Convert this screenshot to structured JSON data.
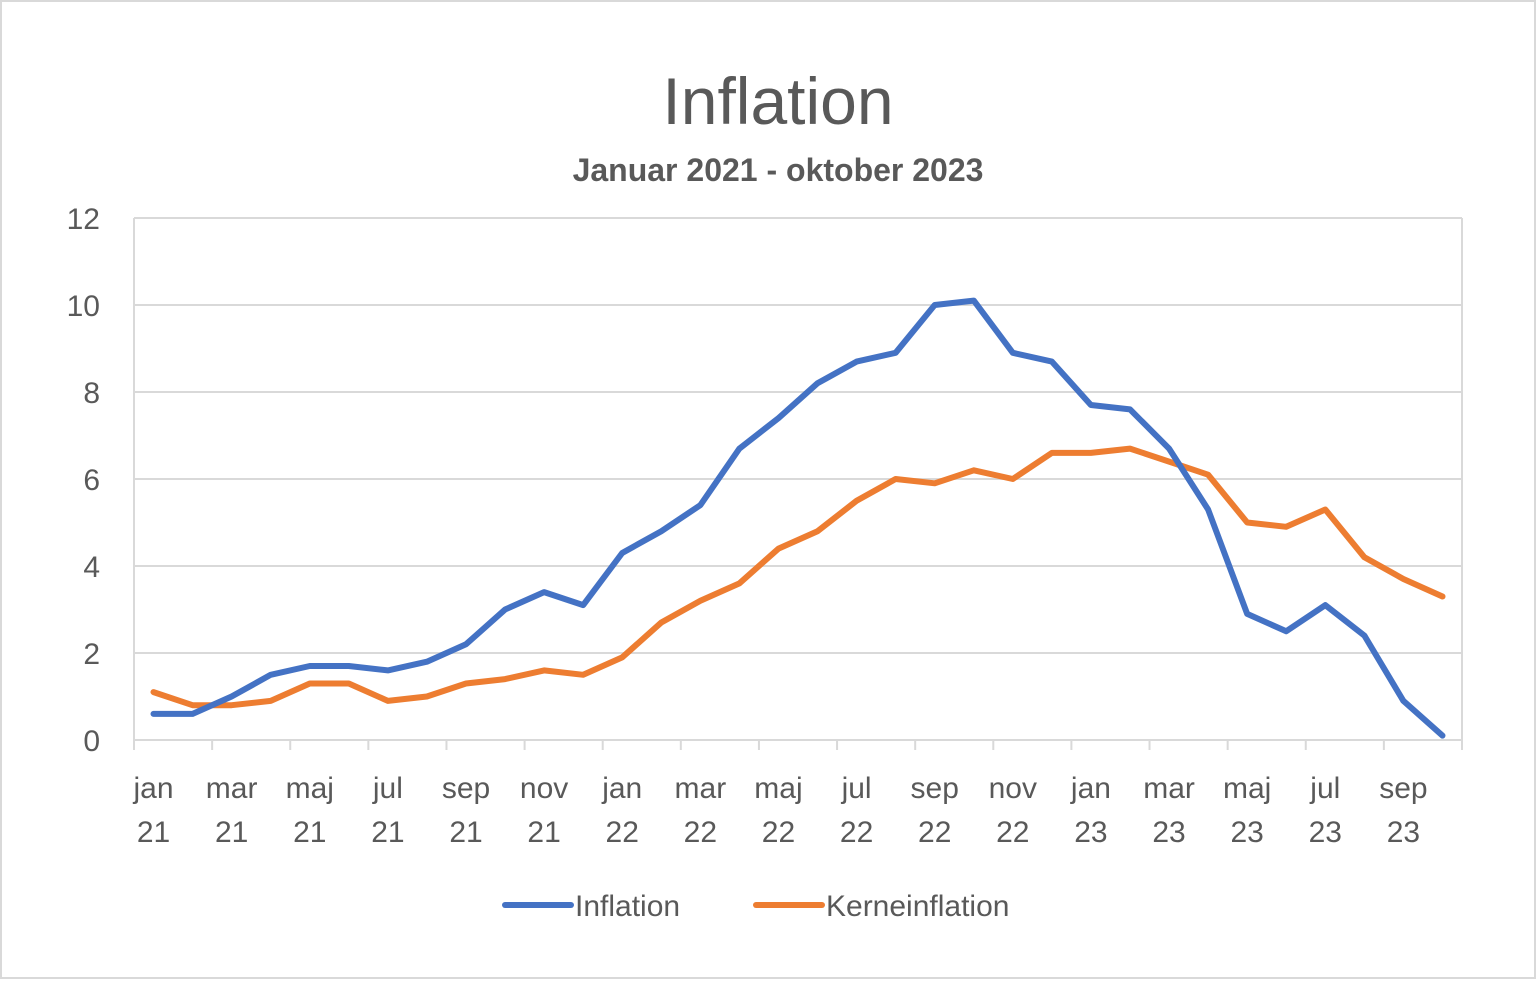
{
  "chart_data": {
    "type": "line",
    "title": "Inflation",
    "subtitle": "Januar 2021 - oktober 2023",
    "xlabel": "",
    "ylabel": "",
    "ylim": [
      0,
      12
    ],
    "yticks": [
      0,
      2,
      4,
      6,
      8,
      10,
      12
    ],
    "grid": true,
    "legend": "bottom",
    "categories": [
      "jan 21",
      "feb 21",
      "mar 21",
      "apr 21",
      "maj 21",
      "jun 21",
      "jul 21",
      "aug 21",
      "sep 21",
      "okt 21",
      "nov 21",
      "dec 21",
      "jan 22",
      "feb 22",
      "mar 22",
      "apr 22",
      "maj 22",
      "jun 22",
      "jul 22",
      "aug 22",
      "sep 22",
      "okt 22",
      "nov 22",
      "dec 22",
      "jan 23",
      "feb 23",
      "mar 23",
      "apr 23",
      "maj 23",
      "jun 23",
      "jul 23",
      "aug 23",
      "sep 23",
      "okt 23"
    ],
    "tick_labels": [
      [
        "jan",
        "21"
      ],
      [
        "mar",
        "21"
      ],
      [
        "maj",
        "21"
      ],
      [
        "jul",
        "21"
      ],
      [
        "sep",
        "21"
      ],
      [
        "nov",
        "21"
      ],
      [
        "jan",
        "22"
      ],
      [
        "mar",
        "22"
      ],
      [
        "maj",
        "22"
      ],
      [
        "jul",
        "22"
      ],
      [
        "sep",
        "22"
      ],
      [
        "nov",
        "22"
      ],
      [
        "jan",
        "23"
      ],
      [
        "mar",
        "23"
      ],
      [
        "maj",
        "23"
      ],
      [
        "jul",
        "23"
      ],
      [
        "sep",
        "23"
      ]
    ],
    "series": [
      {
        "name": "Inflation",
        "color": "#4472C4",
        "values": [
          0.6,
          0.6,
          1.0,
          1.5,
          1.7,
          1.7,
          1.6,
          1.8,
          2.2,
          3.0,
          3.4,
          3.1,
          4.3,
          4.8,
          5.4,
          6.7,
          7.4,
          8.2,
          8.7,
          8.9,
          10.0,
          10.1,
          8.9,
          8.7,
          7.7,
          7.6,
          6.7,
          5.3,
          2.9,
          2.5,
          3.1,
          2.4,
          0.9,
          0.1
        ]
      },
      {
        "name": "Kerneinflation",
        "color": "#ED7D31",
        "values": [
          1.1,
          0.8,
          0.8,
          0.9,
          1.3,
          1.3,
          0.9,
          1.0,
          1.3,
          1.4,
          1.6,
          1.5,
          1.9,
          2.7,
          3.2,
          3.6,
          4.4,
          4.8,
          5.5,
          6.0,
          5.9,
          6.2,
          6.0,
          6.6,
          6.6,
          6.7,
          6.4,
          6.1,
          5.0,
          4.9,
          5.3,
          4.2,
          3.7,
          3.3
        ]
      }
    ]
  }
}
